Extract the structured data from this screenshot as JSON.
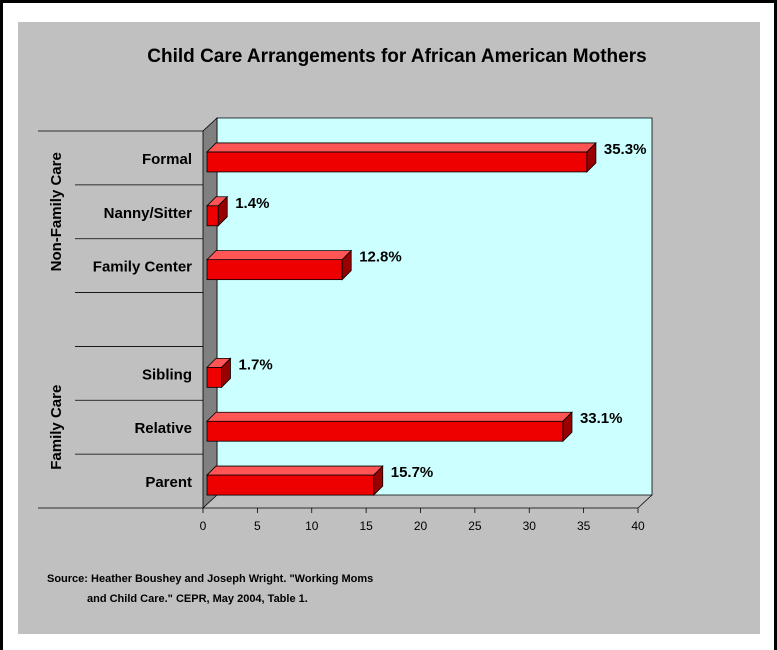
{
  "chart_data": {
    "type": "bar",
    "orientation": "horizontal",
    "title": "Child Care Arrangements for African American Mothers",
    "xlim": [
      0,
      40
    ],
    "x_ticks": [
      "0",
      "5",
      "10",
      "15",
      "20",
      "25",
      "30",
      "35",
      "40"
    ],
    "grid": false,
    "legend": "none",
    "groups": [
      {
        "name": "Non-Family Care",
        "bars": [
          {
            "category": "Formal",
            "value": 35.3,
            "label": "35.3%"
          },
          {
            "category": "Nanny/Sitter",
            "value": 1.4,
            "label": "1.4%"
          },
          {
            "category": "Family Center",
            "value": 12.8,
            "label": "12.8%"
          }
        ]
      },
      {
        "name": "Family Care",
        "bars": [
          {
            "category": "Sibling",
            "value": 1.7,
            "label": "1.7%"
          },
          {
            "category": "Relative",
            "value": 33.1,
            "label": "33.1%"
          },
          {
            "category": "Parent",
            "value": 15.7,
            "label": "15.7%"
          }
        ]
      }
    ],
    "colors": {
      "plot_background": "#ccffff",
      "bar_front": "#ee0000",
      "bar_top": "#ff5555",
      "bar_side": "#990000",
      "wall_side": "#808080",
      "panel": "#c0c0c0"
    }
  },
  "source": {
    "line1": "Source:  Heather Boushey and Joseph Wright.  \"Working Moms",
    "line2": "and Child Care.\"  CEPR, May 2004, Table 1."
  }
}
